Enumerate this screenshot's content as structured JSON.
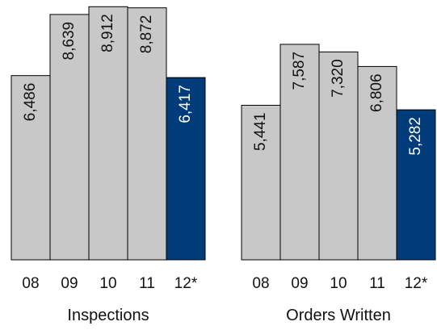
{
  "chart_data": [
    {
      "type": "bar",
      "title": "Inspections",
      "categories": [
        "08",
        "09",
        "10",
        "11",
        "12*"
      ],
      "values": [
        6486,
        8639,
        8912,
        8872,
        6417
      ],
      "value_labels": [
        "6,486",
        "8,639",
        "8,912",
        "8,872",
        "6,417"
      ],
      "colors": [
        "#c8c8c8",
        "#c8c8c8",
        "#c8c8c8",
        "#c8c8c8",
        "#003b7a"
      ]
    },
    {
      "type": "bar",
      "title": "Orders Written",
      "categories": [
        "08",
        "09",
        "10",
        "11",
        "12*"
      ],
      "values": [
        5441,
        7587,
        7320,
        6806,
        5282
      ],
      "value_labels": [
        "5,441",
        "7,587",
        "7,320",
        "6,806",
        "5,282"
      ],
      "colors": [
        "#c8c8c8",
        "#c8c8c8",
        "#c8c8c8",
        "#c8c8c8",
        "#003b7a"
      ]
    }
  ]
}
